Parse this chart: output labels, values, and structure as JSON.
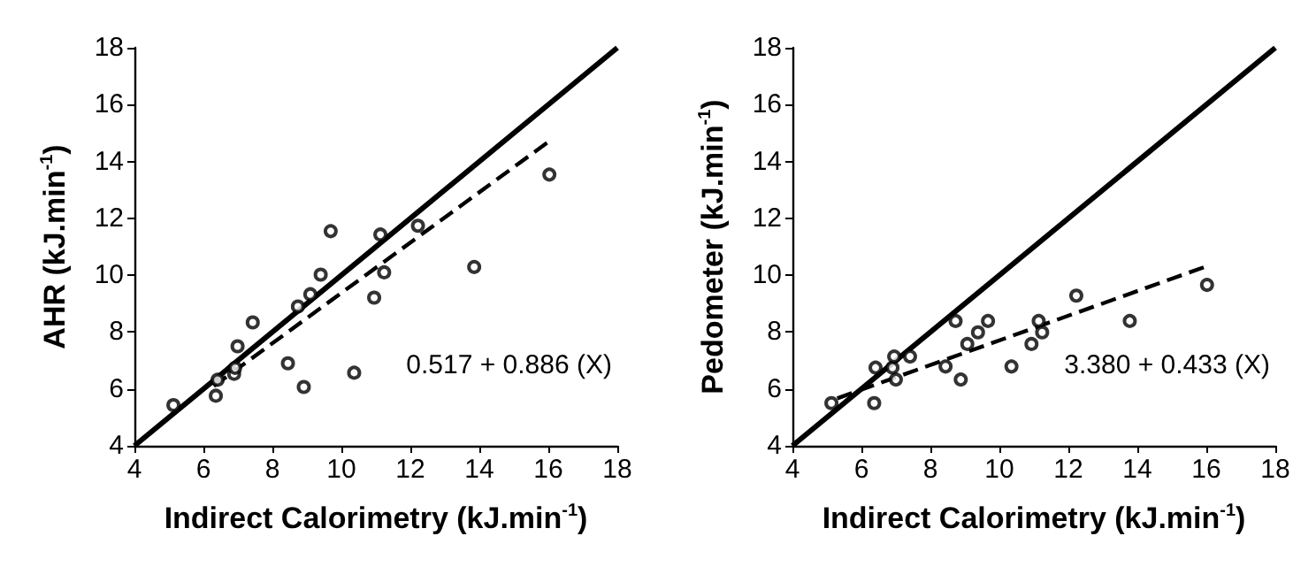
{
  "chart_data": [
    {
      "type": "scatter",
      "xlabel": "Indirect Calorimetry (kJ.min$^{-1}$)",
      "ylabel": "AHR (kJ.min$^{-1}$)",
      "xlim": [
        4,
        18
      ],
      "ylim": [
        4,
        18
      ],
      "xticks": [
        4,
        6,
        8,
        10,
        12,
        14,
        16,
        18
      ],
      "yticks": [
        4,
        6,
        8,
        10,
        12,
        14,
        16,
        18
      ],
      "annotations": [
        "0.517 + 0.886 (X)"
      ],
      "series": [
        {
          "type": "scatter",
          "color": "#000000",
          "marker": "circle",
          "x": [
            5.13,
            6.36,
            6.41,
            6.89,
            6.92,
            6.99,
            7.43,
            8.45,
            8.91,
            8.74,
            9.1,
            9.4,
            9.69,
            10.37,
            10.95,
            11.13,
            11.24,
            12.22,
            13.85,
            16.03
          ],
          "values": [
            5.43,
            5.76,
            6.32,
            6.53,
            6.74,
            7.5,
            8.34,
            6.9,
            6.07,
            8.9,
            9.33,
            10.02,
            11.55,
            6.57,
            9.21,
            11.43,
            10.1,
            11.74,
            10.29,
            13.54
          ]
        },
        {
          "type": "line",
          "color": "#000000",
          "line_style": "solid",
          "x": [
            4,
            18
          ],
          "values": [
            4,
            18
          ]
        },
        {
          "type": "line",
          "color": "#000000",
          "line_style": "dashed",
          "x": [
            6.3,
            16
          ],
          "values": [
            6.1,
            14.69
          ]
        }
      ]
    },
    {
      "type": "scatter",
      "xlabel": "Indirect Calorimetry (kJ.min$^{-1}$)",
      "ylabel": "Pedometer (kJ.min$^{-1}$)",
      "xlim": [
        4,
        18
      ],
      "ylim": [
        4,
        18
      ],
      "xticks": [
        4,
        6,
        8,
        10,
        12,
        14,
        16,
        18
      ],
      "yticks": [
        4,
        6,
        8,
        10,
        12,
        14,
        16,
        18
      ],
      "annotations": [
        "3.380 + 0.433 (X)"
      ],
      "series": [
        {
          "type": "scatter",
          "color": "#000000",
          "marker": "circle",
          "x": [
            5.13,
            6.37,
            6.41,
            6.9,
            6.95,
            7.0,
            7.41,
            8.44,
            8.73,
            8.88,
            9.07,
            9.38,
            9.67,
            10.35,
            10.93,
            11.14,
            11.24,
            12.23,
            13.78,
            16.02
          ],
          "values": [
            5.5,
            5.5,
            6.75,
            6.75,
            7.14,
            6.33,
            7.14,
            6.79,
            8.39,
            6.33,
            7.58,
            7.99,
            8.39,
            6.79,
            7.58,
            8.39,
            7.99,
            9.28,
            8.39,
            9.66
          ]
        },
        {
          "type": "line",
          "color": "#000000",
          "line_style": "solid",
          "x": [
            4,
            18
          ],
          "values": [
            4,
            18
          ]
        },
        {
          "type": "line",
          "color": "#000000",
          "line_style": "dashed",
          "x": [
            5.3,
            16
          ],
          "values": [
            5.67,
            10.31
          ]
        }
      ]
    }
  ]
}
